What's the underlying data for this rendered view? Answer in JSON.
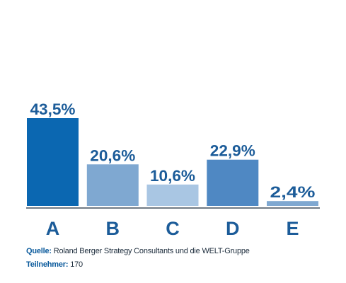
{
  "chart_data": {
    "type": "bar",
    "categories": [
      "A",
      "B",
      "C",
      "D",
      "E"
    ],
    "values": [
      43.5,
      20.6,
      10.6,
      22.9,
      2.4
    ],
    "value_labels": [
      "43,5%",
      "20,6%",
      "10,6%",
      "22,9%",
      "2,4%"
    ],
    "colors": [
      "#0b67b1",
      "#7fa8d1",
      "#a9c6e3",
      "#4f88c3",
      "#7fa8d1"
    ],
    "label_color": "#1c5c99",
    "axis_color": "#1a2a3a",
    "ylim": [
      0,
      43.5
    ],
    "grid": false,
    "legend": "none"
  },
  "footer": {
    "source_label": "Quelle:",
    "source_text": " Roland Berger Strategy Consultants und die WELT-Gruppe",
    "participants_label": "Teilnehmer:",
    "participants_text": " 170"
  }
}
